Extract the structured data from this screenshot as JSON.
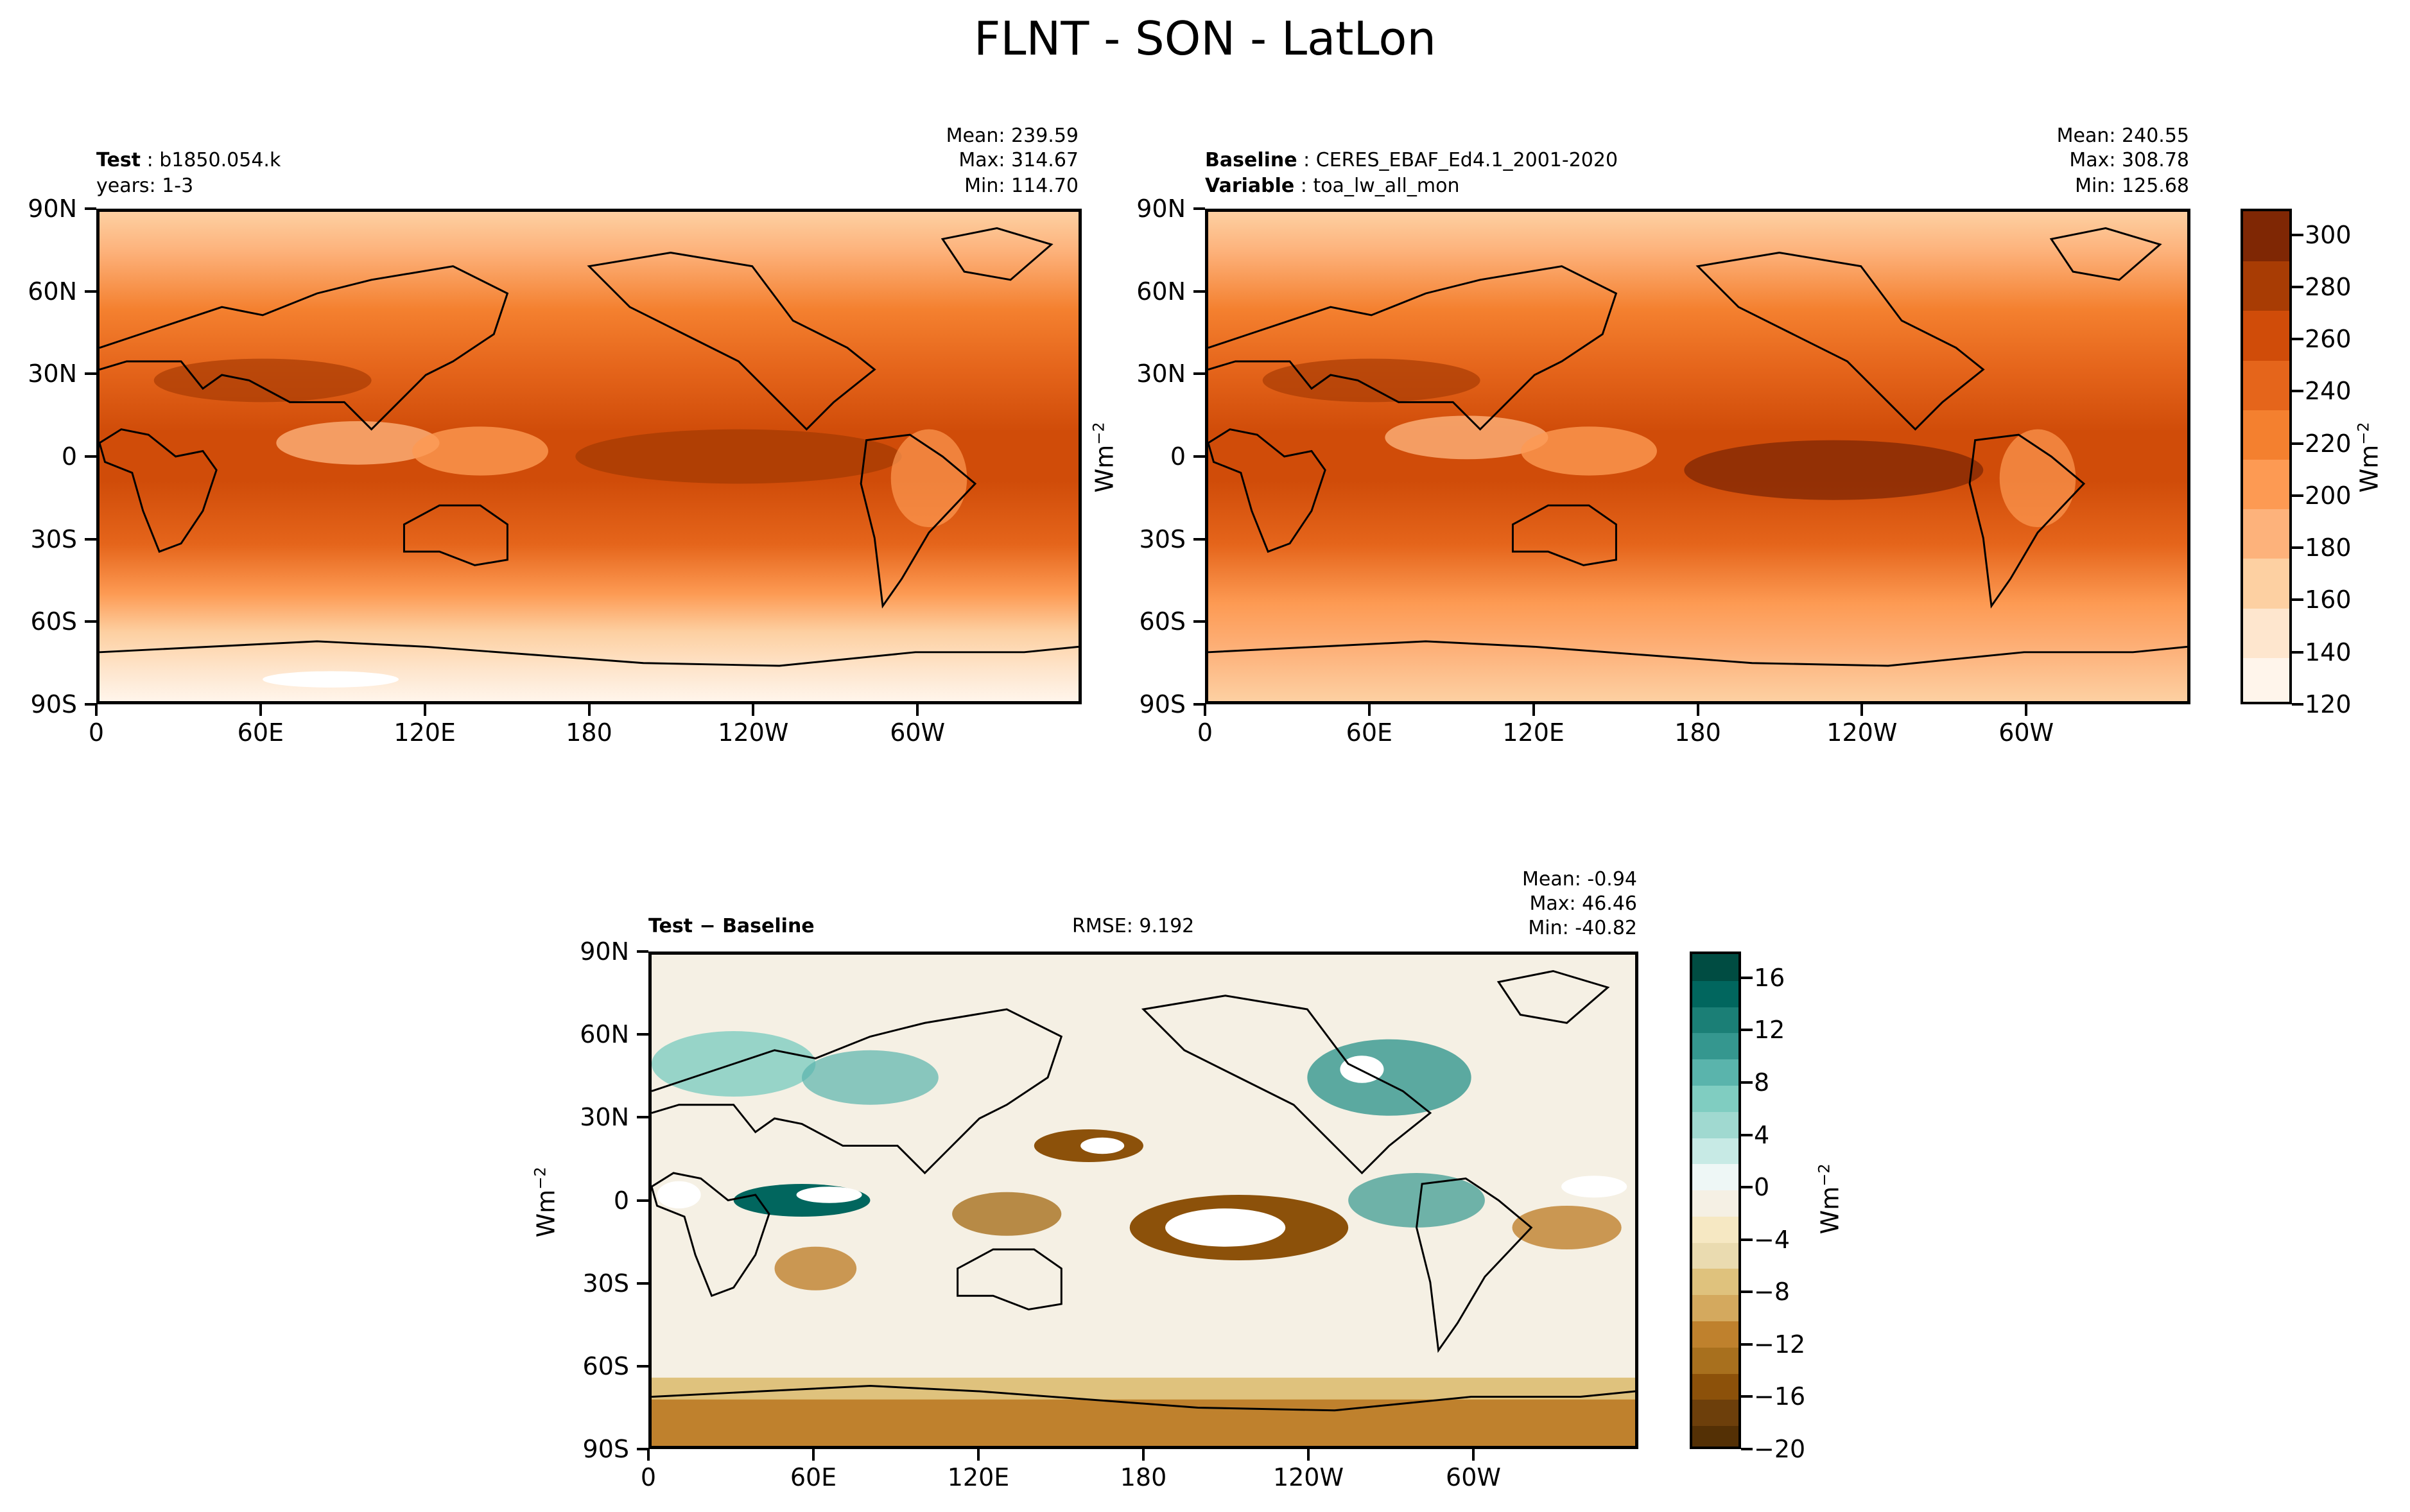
{
  "title": "FLNT - SON - LatLon",
  "panels": {
    "test": {
      "label": "Test",
      "name": "b1850.054.k",
      "years": "years: 1-3",
      "stats": {
        "mean": "Mean: 239.59",
        "max": "Max: 314.67",
        "min": "Min: 114.70"
      }
    },
    "baseline": {
      "label": "Baseline",
      "name": "CERES_EBAF_Ed4.1_2001-2020",
      "var_label": "Variable",
      "var_name": "toa_lw_all_mon",
      "stats": {
        "mean": "Mean: 240.55",
        "max": "Max: 308.78",
        "min": "Min: 125.68"
      }
    },
    "diff": {
      "label": "Test",
      "label2": "Baseline",
      "rmse": "RMSE: 9.192",
      "stats": {
        "mean": "Mean: -0.94",
        "max": "Max: 46.46",
        "min": "Min: -40.82"
      }
    }
  },
  "units": "Wm",
  "units_exp": "−2",
  "axes": {
    "lat_ticks": [
      "90N",
      "60N",
      "30N",
      "0",
      "30S",
      "60S",
      "90S"
    ],
    "lon_ticks": [
      "0",
      "60E",
      "120E",
      "180",
      "120W",
      "60W"
    ]
  },
  "colorbar_main": {
    "ticks": [
      "120",
      "140",
      "160",
      "180",
      "200",
      "220",
      "240",
      "260",
      "280",
      "300"
    ],
    "colors": [
      "#fff5eb",
      "#fee6ce",
      "#fdd0a2",
      "#fdb27b",
      "#fd9a53",
      "#f4802f",
      "#e5651b",
      "#d04c09",
      "#a83c04",
      "#7f2704"
    ]
  },
  "colorbar_diff": {
    "ticks": [
      "−20",
      "−16",
      "−12",
      "−8",
      "−4",
      "0",
      "4",
      "8",
      "12",
      "16"
    ],
    "colors": [
      "#543005",
      "#6d3f0b",
      "#8c510a",
      "#a8701e",
      "#bf812d",
      "#d4a95e",
      "#dfc27d",
      "#eadbb0",
      "#f6e8c3",
      "#f5f0e4",
      "#eef7f6",
      "#c7eae5",
      "#a0d9d0",
      "#80cdc1",
      "#5ab4ac",
      "#35978f",
      "#1b7f76",
      "#01665e",
      "#004c42"
    ]
  },
  "chart_data": [
    {
      "type": "heatmap",
      "title": "Test: b1850.054.k",
      "subtitle": "years: 1-3",
      "stats": {
        "mean": 239.59,
        "max": 314.67,
        "min": 114.7
      },
      "y_ticks": [
        "90N",
        "60N",
        "30N",
        "0",
        "30S",
        "60S",
        "90S"
      ],
      "x_ticks": [
        "0",
        "60E",
        "120E",
        "180",
        "120W",
        "60W"
      ],
      "colorbar_range": [
        120,
        310
      ]
    },
    {
      "type": "heatmap",
      "title": "Baseline: CERES_EBAF_Ed4.1_2001-2020",
      "subtitle": "Variable: toa_lw_all_mon",
      "stats": {
        "mean": 240.55,
        "max": 308.78,
        "min": 125.68
      },
      "y_ticks": [
        "90N",
        "60N",
        "30N",
        "0",
        "30S",
        "60S",
        "90S"
      ],
      "x_ticks": [
        "0",
        "60E",
        "120E",
        "180",
        "120W",
        "60W"
      ],
      "colorbar_range": [
        120,
        310
      ]
    },
    {
      "type": "heatmap",
      "title": "Test − Baseline",
      "rmse": 9.192,
      "stats": {
        "mean": -0.94,
        "max": 46.46,
        "min": -40.82
      },
      "y_ticks": [
        "90N",
        "60N",
        "30N",
        "0",
        "30S",
        "60S",
        "90S"
      ],
      "x_ticks": [
        "0",
        "60E",
        "120E",
        "180",
        "120W",
        "60W"
      ],
      "colorbar_range": [
        -20,
        18
      ]
    }
  ]
}
